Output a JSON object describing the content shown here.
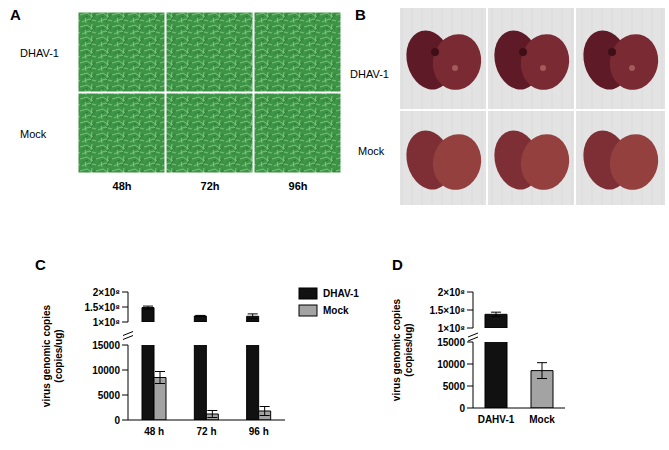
{
  "panels": {
    "A": {
      "label": "A",
      "row_labels": [
        "DHAV-1",
        "Mock"
      ],
      "column_labels": [
        "48h",
        "72h",
        "96h"
      ]
    },
    "B": {
      "label": "B",
      "row_labels": [
        "DHAV-1",
        "Mock"
      ]
    },
    "C": {
      "label": "C"
    },
    "D": {
      "label": "D"
    }
  },
  "chart_data": [
    {
      "type": "bar",
      "y_label": "virus genomic copies\n(copies/ug)",
      "categories": [
        "48 h",
        "72 h",
        "96 h"
      ],
      "series": [
        {
          "name": "DHAV-1",
          "color": "#111111",
          "values": [
            148000000,
            120000000,
            119000000
          ],
          "errors": [
            5000000,
            2000000,
            8000000
          ]
        },
        {
          "name": "Mock",
          "color": "#a3a3a3",
          "values": [
            8500,
            1200,
            1800
          ],
          "errors": [
            1200,
            700,
            900
          ]
        }
      ],
      "ylim": [
        0,
        200000000
      ],
      "y_break": [
        15000,
        100000000
      ],
      "yticks": [
        0,
        5000,
        10000,
        15000,
        {
          "value": 100000000,
          "label": "1×10⁸"
        },
        {
          "value": 150000000,
          "label": "1.5×10⁸"
        },
        {
          "value": 200000000,
          "label": "2×10⁸"
        }
      ],
      "legend": "right",
      "grid": false
    },
    {
      "type": "bar",
      "y_label": "virus genomic copies\n(copies/ug)",
      "categories": [
        "DAHV-1",
        "Mock"
      ],
      "values": [
        138000000,
        8500
      ],
      "errors": [
        6000000,
        1800
      ],
      "colors": [
        "#111111",
        "#a3a3a3"
      ],
      "ylim": [
        0,
        200000000
      ],
      "y_break": [
        15000,
        100000000
      ],
      "yticks": [
        0,
        5000,
        10000,
        15000,
        {
          "value": 100000000,
          "label": "1×10⁸"
        },
        {
          "value": 150000000,
          "label": "1.5×10⁸"
        },
        {
          "value": 200000000,
          "label": "2×10⁸"
        }
      ],
      "grid": false
    }
  ]
}
